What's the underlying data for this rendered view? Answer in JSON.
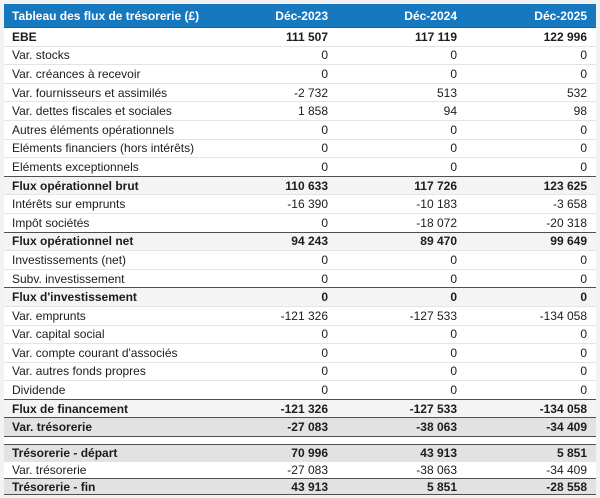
{
  "colors": {
    "header_bg": "#1679c0",
    "header_text": "#ffffff",
    "subtotal_bg": "#f4f4f4",
    "total_bg": "#e2e2e2",
    "border_dark": "#4f4f4f",
    "border_light": "#e4e4e4",
    "body_text": "#1c1c1c"
  },
  "table": {
    "title": "Tableau des flux de trésorerie (£)",
    "columns": [
      "Déc-2023",
      "Déc-2024",
      "Déc-2025"
    ],
    "rows": [
      {
        "label": "EBE",
        "values": [
          "111 507",
          "117 119",
          "122 996"
        ],
        "style": "header-bold"
      },
      {
        "label": "Var. stocks",
        "values": [
          "0",
          "0",
          "0"
        ],
        "style": "normal"
      },
      {
        "label": "Var. créances à recevoir",
        "values": [
          "0",
          "0",
          "0"
        ],
        "style": "normal"
      },
      {
        "label": "Var. fournisseurs et assimilés",
        "values": [
          "-2 732",
          "513",
          "532"
        ],
        "style": "normal"
      },
      {
        "label": "Var. dettes fiscales et sociales",
        "values": [
          "1 858",
          "94",
          "98"
        ],
        "style": "normal"
      },
      {
        "label": "Autres éléments opérationnels",
        "values": [
          "0",
          "0",
          "0"
        ],
        "style": "normal"
      },
      {
        "label": "Eléments financiers (hors intérêts)",
        "values": [
          "0",
          "0",
          "0"
        ],
        "style": "normal"
      },
      {
        "label": "Eléments exceptionnels",
        "values": [
          "0",
          "0",
          "0"
        ],
        "style": "normal"
      },
      {
        "label": "Flux opérationnel brut",
        "values": [
          "110 633",
          "117 726",
          "123 625"
        ],
        "style": "subtotal"
      },
      {
        "label": "Intérêts sur emprunts",
        "values": [
          "-16 390",
          "-10 183",
          "-3 658"
        ],
        "style": "normal"
      },
      {
        "label": "Impôt sociétés",
        "values": [
          "0",
          "-18 072",
          "-20 318"
        ],
        "style": "normal"
      },
      {
        "label": "Flux opérationnel net",
        "values": [
          "94 243",
          "89 470",
          "99 649"
        ],
        "style": "subtotal"
      },
      {
        "label": "Investissements (net)",
        "values": [
          "0",
          "0",
          "0"
        ],
        "style": "normal"
      },
      {
        "label": "Subv. investissement",
        "values": [
          "0",
          "0",
          "0"
        ],
        "style": "normal"
      },
      {
        "label": "Flux d'investissement",
        "values": [
          "0",
          "0",
          "0"
        ],
        "style": "subtotal"
      },
      {
        "label": "Var. emprunts",
        "values": [
          "-121 326",
          "-127 533",
          "-134 058"
        ],
        "style": "normal"
      },
      {
        "label": "Var. capital social",
        "values": [
          "0",
          "0",
          "0"
        ],
        "style": "normal"
      },
      {
        "label": "Var. compte courant d'associés",
        "values": [
          "0",
          "0",
          "0"
        ],
        "style": "normal"
      },
      {
        "label": "Var. autres fonds propres",
        "values": [
          "0",
          "0",
          "0"
        ],
        "style": "normal"
      },
      {
        "label": "Dividende",
        "values": [
          "0",
          "0",
          "0"
        ],
        "style": "normal"
      },
      {
        "label": "Flux de financement",
        "values": [
          "-121 326",
          "-127 533",
          "-134 058"
        ],
        "style": "subtotal"
      },
      {
        "label": "Var. trésorerie",
        "values": [
          "-27 083",
          "-38 063",
          "-34 409"
        ],
        "style": "total-end"
      },
      {
        "label": "",
        "values": [
          "",
          "",
          ""
        ],
        "style": "spacer"
      },
      {
        "label": "Trésorerie - départ",
        "values": [
          "70 996",
          "43 913",
          "5 851"
        ],
        "style": "total",
        "compact": true
      },
      {
        "label": "Var. trésorerie",
        "values": [
          "-27 083",
          "-38 063",
          "-34 409"
        ],
        "style": "normal",
        "compact": true
      },
      {
        "label": "Trésorerie - fin",
        "values": [
          "43 913",
          "5 851",
          "-28 558"
        ],
        "style": "total-end",
        "compact": true
      }
    ]
  }
}
